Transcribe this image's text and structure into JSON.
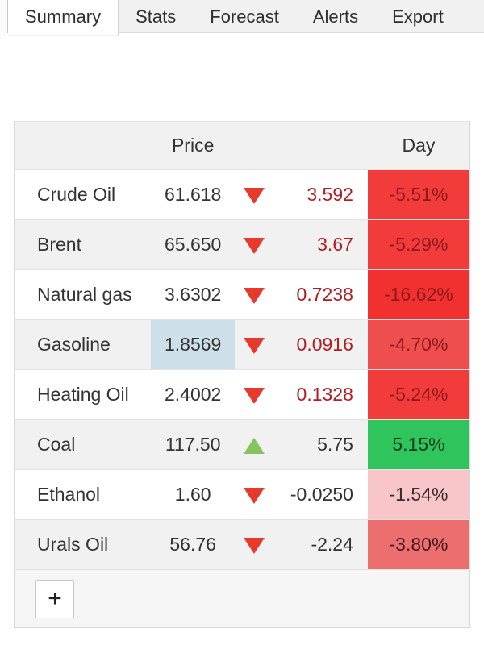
{
  "tabs": {
    "items": [
      {
        "label": "Summary",
        "active": true
      },
      {
        "label": "Stats",
        "active": false
      },
      {
        "label": "Forecast",
        "active": false
      },
      {
        "label": "Alerts",
        "active": false
      },
      {
        "label": "Export",
        "active": false
      }
    ]
  },
  "table": {
    "headers": {
      "name": "",
      "price": "Price",
      "day": "Day"
    },
    "rows": [
      {
        "name": "Crude Oil",
        "price": "61.618",
        "direction": "down",
        "change": "3.592",
        "change_color": "#b01d23",
        "day": "-5.51%",
        "day_bg": "#f23b3b",
        "day_color": "#8e1a1d",
        "price_highlight": false,
        "price_highlight_bg": ""
      },
      {
        "name": "Brent",
        "price": "65.650",
        "direction": "down",
        "change": "3.67",
        "change_color": "#b01d23",
        "day": "-5.29%",
        "day_bg": "#f23b3b",
        "day_color": "#8e1a1d",
        "price_highlight": false,
        "price_highlight_bg": ""
      },
      {
        "name": "Natural gas",
        "price": "3.6302",
        "direction": "down",
        "change": "0.7238",
        "change_color": "#b01d23",
        "day": "-16.62%",
        "day_bg": "#f13030",
        "day_color": "#8e1a1d",
        "price_highlight": false,
        "price_highlight_bg": ""
      },
      {
        "name": "Gasoline",
        "price": "1.8569",
        "direction": "down",
        "change": "0.0916",
        "change_color": "#b01d23",
        "day": "-4.70%",
        "day_bg": "#ee4e4e",
        "day_color": "#8e1a1d",
        "price_highlight": true,
        "price_highlight_bg": "#cde0e9"
      },
      {
        "name": "Heating Oil",
        "price": "2.4002",
        "direction": "down",
        "change": "0.1328",
        "change_color": "#b01d23",
        "day": "-5.24%",
        "day_bg": "#f23b3b",
        "day_color": "#8e1a1d",
        "price_highlight": false,
        "price_highlight_bg": ""
      },
      {
        "name": "Coal",
        "price": "117.50",
        "direction": "up",
        "change": "5.75",
        "change_color": "#333333",
        "day": "5.15%",
        "day_bg": "#30c45d",
        "day_color": "#123d1f",
        "price_highlight": false,
        "price_highlight_bg": ""
      },
      {
        "name": "Ethanol",
        "price": "1.60",
        "direction": "down",
        "change": "-0.0250",
        "change_color": "#333333",
        "day": "-1.54%",
        "day_bg": "#f8c5c8",
        "day_color": "#3b2a2b",
        "price_highlight": false,
        "price_highlight_bg": ""
      },
      {
        "name": "Urals Oil",
        "price": "56.76",
        "direction": "down",
        "change": "-2.24",
        "change_color": "#333333",
        "day": "-3.80%",
        "day_bg": "#ed6e6e",
        "day_color": "#421a1c",
        "price_highlight": false,
        "price_highlight_bg": ""
      }
    ],
    "footer": {
      "add_button_label": "+"
    }
  },
  "colors": {
    "down_triangle": "#e8392d",
    "up_triangle": "#84c55e",
    "tab_bar_bg": "#f1f1f1",
    "zebra_bg": "#f1f1f1",
    "text": "#333333"
  }
}
